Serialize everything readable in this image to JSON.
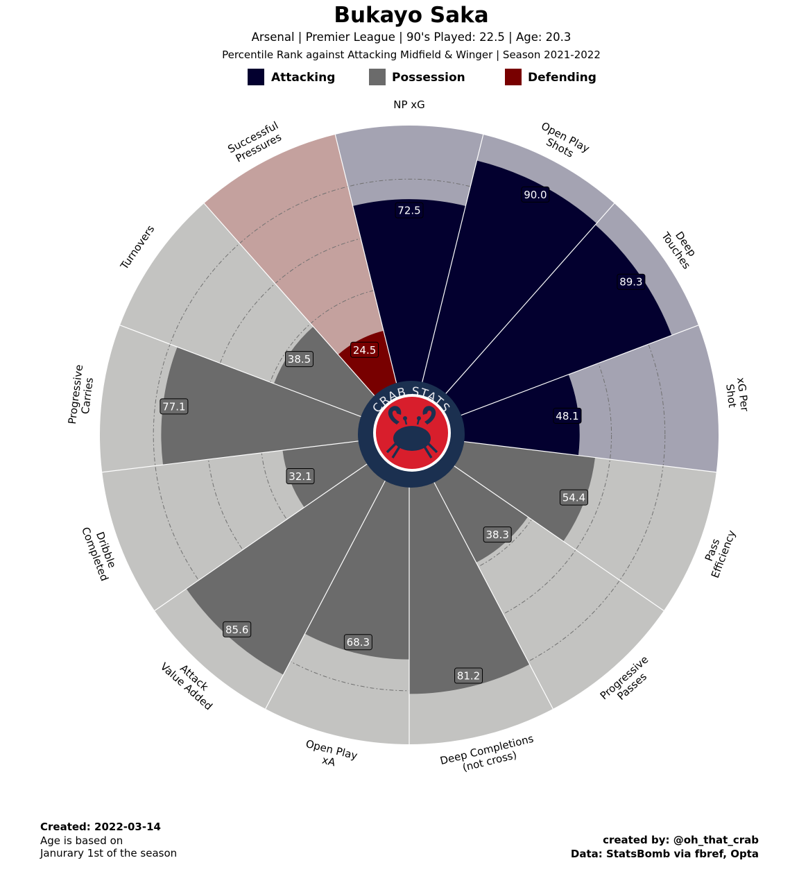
{
  "header": {
    "title": "Bukayo Saka",
    "subtitle": "Arsenal  | Premier League | 90's Played: 22.5 | Age: 20.3",
    "subtitle2": "Percentile Rank against Attacking Midfield & Winger  | Season 2021-2022"
  },
  "legend": [
    {
      "label": "Attacking",
      "color": "#03002f"
    },
    {
      "label": "Possession",
      "color": "#6b6b6b"
    },
    {
      "label": "Defending",
      "color": "#780000"
    }
  ],
  "logo": {
    "text": "CRAB STATS",
    "icon": "crab-icon"
  },
  "chart_data": {
    "type": "radial-bar",
    "range": [
      0,
      100
    ],
    "grid": true,
    "categories": [
      {
        "label": [
          "NP xG"
        ],
        "value": 72.5,
        "group": "Attacking"
      },
      {
        "label": [
          "Open Play",
          "Shots"
        ],
        "value": 90.0,
        "group": "Attacking"
      },
      {
        "label": [
          "Deep",
          "Touches"
        ],
        "value": 89.3,
        "group": "Attacking"
      },
      {
        "label": [
          "xG Per",
          "Shot"
        ],
        "value": 48.1,
        "group": "Attacking"
      },
      {
        "label": [
          "Pass",
          "Efficiency"
        ],
        "value": 54.4,
        "group": "Possession"
      },
      {
        "label": [
          "Progressive",
          "Passes"
        ],
        "value": 38.3,
        "group": "Possession"
      },
      {
        "label": [
          "Deep Completions",
          "(not cross)"
        ],
        "value": 81.2,
        "group": "Possession"
      },
      {
        "label": [
          "Open Play",
          "xA"
        ],
        "value": 68.3,
        "group": "Possession"
      },
      {
        "label": [
          "Attack",
          "Value Added"
        ],
        "value": 85.6,
        "group": "Possession"
      },
      {
        "label": [
          "Dribble",
          "Completed"
        ],
        "value": 32.1,
        "group": "Possession"
      },
      {
        "label": [
          "Progressive",
          "Carries"
        ],
        "value": 77.1,
        "group": "Possession"
      },
      {
        "label": [
          "Turnovers"
        ],
        "value": 38.5,
        "group": "Possession"
      },
      {
        "label": [
          "Successful",
          "Pressures"
        ],
        "value": 24.5,
        "group": "Defending"
      }
    ],
    "group_colors": {
      "Attacking": {
        "bar": "#03002f",
        "bg": "#a4a3b2"
      },
      "Possession": {
        "bar": "#6b6b6b",
        "bg": "#c3c3c1"
      },
      "Defending": {
        "bar": "#780000",
        "bg": "#c4a19e"
      }
    }
  },
  "footer": {
    "created": "Created: 2022-03-14",
    "age_note_line1": "Age is based on",
    "age_note_line2": "Janurary 1st of the season",
    "credit": "created by: @oh_that_crab",
    "source": "Data: StatsBomb via fbref, Opta"
  }
}
